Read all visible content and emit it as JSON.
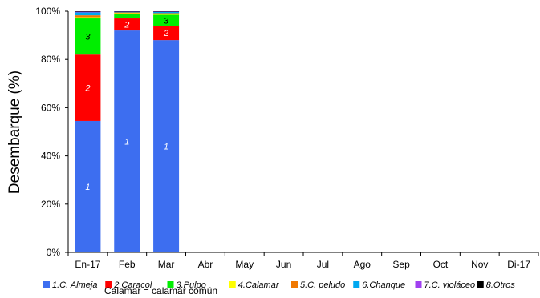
{
  "chart_data": {
    "type": "bar",
    "stacked": true,
    "ylabel": "Desembarque (%)",
    "ylim": [
      0,
      100
    ],
    "yticks": [
      "0%",
      "20%",
      "40%",
      "60%",
      "80%",
      "100%"
    ],
    "categories": [
      "En-17",
      "Feb",
      "Mar",
      "Abr",
      "May",
      "Jun",
      "Jul",
      "Ago",
      "Sep",
      "Oct",
      "Nov",
      "Di-17"
    ],
    "series": [
      {
        "name": "1.C. Almeja",
        "label": "1",
        "color": "#3d6ef0",
        "values": [
          54.5,
          92,
          88,
          null,
          null,
          null,
          null,
          null,
          null,
          null,
          null,
          null
        ]
      },
      {
        "name": "2.Caracol",
        "label": "2",
        "color": "#ff0000",
        "values": [
          27.5,
          5,
          6,
          null,
          null,
          null,
          null,
          null,
          null,
          null,
          null,
          null
        ]
      },
      {
        "name": "3.Pulpo",
        "label": "3",
        "color": "#00ee00",
        "values": [
          15,
          2,
          4.5,
          null,
          null,
          null,
          null,
          null,
          null,
          null,
          null,
          null
        ]
      },
      {
        "name": "4.Calamar",
        "label": "4",
        "color": "#ffff00",
        "values": [
          0.5,
          0.2,
          0.3,
          null,
          null,
          null,
          null,
          null,
          null,
          null,
          null,
          null
        ]
      },
      {
        "name": "5.C. peludo",
        "label": "5",
        "color": "#f07800",
        "values": [
          0.8,
          0.3,
          0.4,
          null,
          null,
          null,
          null,
          null,
          null,
          null,
          null,
          null
        ]
      },
      {
        "name": "6.Chanque",
        "label": "6",
        "color": "#00a8f0",
        "values": [
          1.2,
          0.3,
          0.5,
          null,
          null,
          null,
          null,
          null,
          null,
          null,
          null,
          null
        ]
      },
      {
        "name": "7.C. violáceo",
        "label": "7",
        "color": "#a040f0",
        "values": [
          0.3,
          0.1,
          0.2,
          null,
          null,
          null,
          null,
          null,
          null,
          null,
          null,
          null
        ]
      },
      {
        "name": "8.Otros",
        "label": "8",
        "color": "#000000",
        "values": [
          0.2,
          0.1,
          0.1,
          null,
          null,
          null,
          null,
          null,
          null,
          null,
          null,
          null
        ]
      }
    ],
    "segment_labels_shown": [
      "1",
      "2",
      "3"
    ],
    "segment_label_colors": {
      "1": "#ffffff",
      "2": "#ffffff",
      "3": "#000000"
    },
    "legend": "bottom",
    "grid": false
  },
  "legend_items": [
    {
      "name": "1.C. Almeja",
      "color": "#3d6ef0"
    },
    {
      "name": "2.Caracol",
      "color": "#ff0000"
    },
    {
      "name": "3.Pulpo",
      "color": "#00ee00"
    },
    {
      "name": "4.Calamar",
      "color": "#ffff00"
    },
    {
      "name": "5.C. peludo",
      "color": "#f07800"
    },
    {
      "name": "6.Chanque",
      "color": "#00a8f0"
    },
    {
      "name": "7.C. violáceo",
      "color": "#a040f0"
    },
    {
      "name": "8.Otros",
      "color": "#000000"
    }
  ],
  "note": "Calamar = calamar común"
}
